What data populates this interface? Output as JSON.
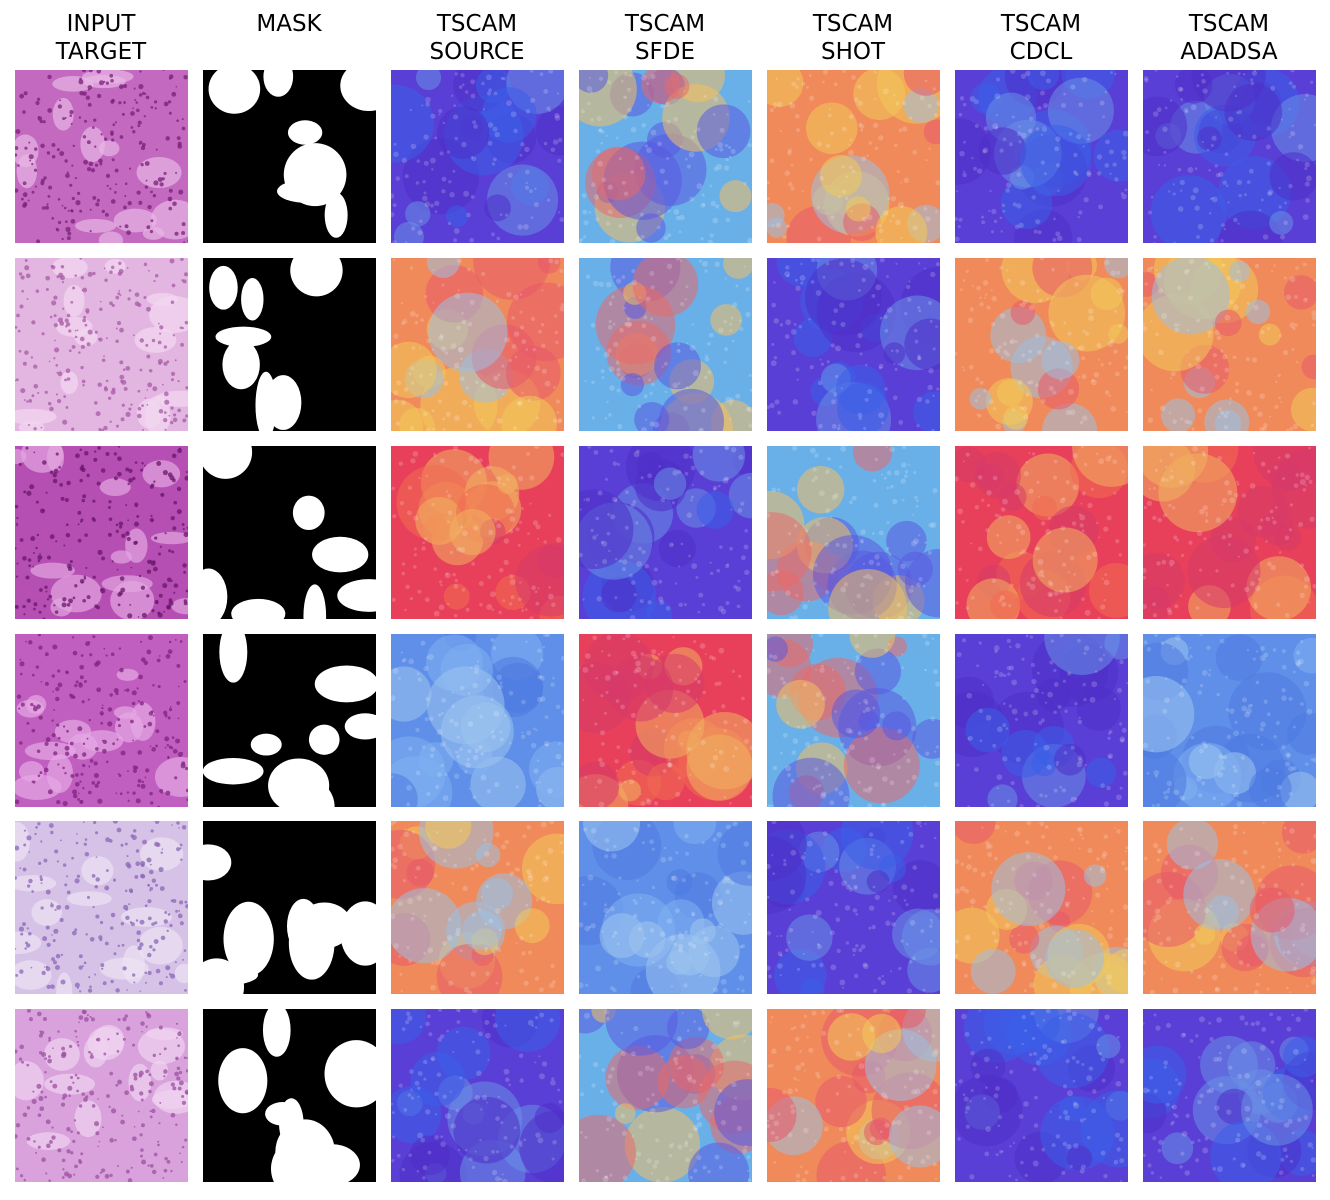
{
  "columns": [
    {
      "id": "input",
      "title": "INPUT\nTARGET"
    },
    {
      "id": "mask",
      "title": "MASK"
    },
    {
      "id": "source",
      "title": "TSCAM\nSOURCE"
    },
    {
      "id": "sfde",
      "title": "TSCAM\nSFDE"
    },
    {
      "id": "shot",
      "title": "TSCAM\nSHOT"
    },
    {
      "id": "cdcl",
      "title": "TSCAM\nCDCL"
    },
    {
      "id": "adadsa",
      "title": "TSCAM\nADADSA"
    }
  ],
  "rows": [
    {
      "tissue": [
        "#c36ac0",
        "#7a1f78",
        "#e8b7e6"
      ],
      "heat": {
        "source": "cool",
        "sfde": "mixed",
        "shot": "warm",
        "cdcl": "cool",
        "adadsa": "cool"
      }
    },
    {
      "tissue": [
        "#e3b6e1",
        "#a75aa6",
        "#f2d9f1"
      ],
      "heat": {
        "source": "warm",
        "sfde": "mixed",
        "shot": "cool",
        "cdcl": "warm",
        "adadsa": "warm"
      }
    },
    {
      "tissue": [
        "#b54fb3",
        "#6a166a",
        "#e2a6e0"
      ],
      "heat": {
        "source": "hot",
        "sfde": "cool",
        "shot": "mixed",
        "cdcl": "hot",
        "adadsa": "hot"
      }
    },
    {
      "tissue": [
        "#c05fc0",
        "#80217f",
        "#e6a8e4"
      ],
      "heat": {
        "source": "cyan",
        "sfde": "hot",
        "shot": "mixed",
        "cdcl": "cool",
        "adadsa": "cyan"
      }
    },
    {
      "tissue": [
        "#d6c2e6",
        "#8b66b8",
        "#ece2f2"
      ],
      "heat": {
        "source": "warm",
        "sfde": "cyan",
        "shot": "cool",
        "cdcl": "warm",
        "adadsa": "warm"
      }
    },
    {
      "tissue": [
        "#d9a2dc",
        "#9b4fa0",
        "#f0d3f0"
      ],
      "heat": {
        "source": "cool",
        "sfde": "mixed",
        "shot": "warm",
        "cdcl": "cool",
        "adadsa": "cool"
      }
    }
  ],
  "palettes": {
    "cool": [
      "#5a3fd6",
      "#3b5ee8",
      "#6a8fe6",
      "#4f30c8"
    ],
    "cyan": [
      "#5f8fe8",
      "#7fb0f0",
      "#4f7ae0",
      "#9cc4ee"
    ],
    "warm": [
      "#f08a5a",
      "#f2c85a",
      "#e85a6a",
      "#9fc0e0"
    ],
    "hot": [
      "#e8405a",
      "#f06a50",
      "#d63a6a",
      "#f0b060"
    ],
    "mixed": [
      "#6ab0e8",
      "#f2c060",
      "#e86a6a",
      "#5a5ae0"
    ]
  },
  "colors": {
    "mask_white": "#ffffff",
    "mask_black": "#000000"
  }
}
